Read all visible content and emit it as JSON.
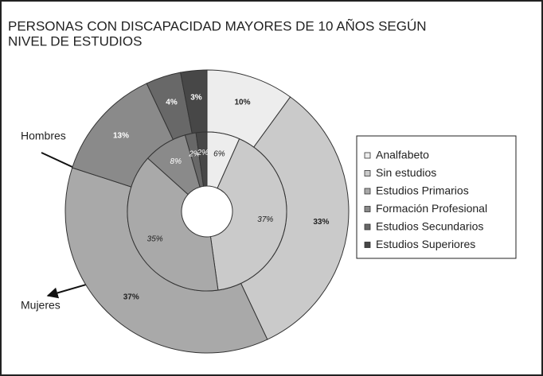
{
  "chart_data": {
    "type": "donut",
    "title": [
      "PERSONAS CON DISCAPACIDAD MAYORES DE 10 AÑOS SEGÚN",
      "NIVEL DE ESTUDIOS"
    ],
    "categories": [
      "Analfabeto",
      "Sin estudios",
      "Estudios Primarios",
      "Formación Profesional",
      "Estudios Secundarios",
      "Estudios Superiores"
    ],
    "colors": [
      "#ededed",
      "#cacaca",
      "#a9a9a9",
      "#8a8a8a",
      "#686868",
      "#474747"
    ],
    "series": [
      {
        "name": "Mujeres",
        "values": [
          10,
          33,
          37,
          13,
          4,
          3
        ],
        "value_labels": [
          "10%",
          "33%",
          "37%",
          "13%",
          "4%",
          "3%"
        ]
      },
      {
        "name": "Hombres",
        "values": [
          6,
          37,
          35,
          8,
          2,
          2
        ],
        "value_labels": [
          "6%",
          "37%",
          "35%",
          "8%",
          "2%",
          "2%"
        ]
      }
    ],
    "legend": "right"
  }
}
